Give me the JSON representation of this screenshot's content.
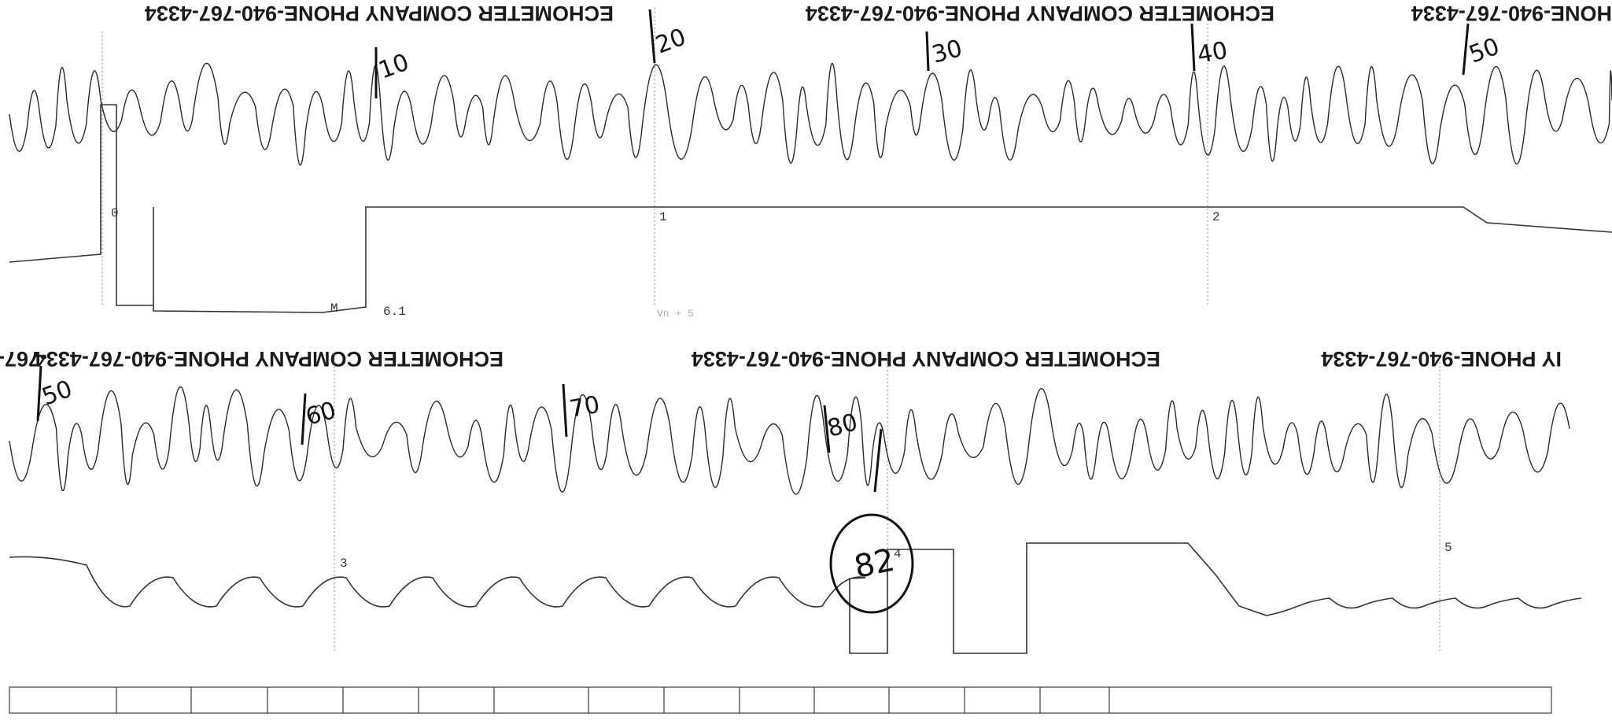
{
  "header_text": {
    "full": "ECHOMETER COMPANY  PHONE-940-767-4334",
    "partial_right": "HONE-940-767-4334",
    "partial_left": "-767-4",
    "partial_company": "IY  PHONE-940-767-4334"
  },
  "time_ticks": [
    "0",
    "1",
    "2",
    "3",
    "4",
    "5"
  ],
  "joint_marks": [
    "10",
    "20",
    "30",
    "40",
    "50",
    "50",
    "60",
    "70",
    "80"
  ],
  "circled_value": "82",
  "marker_text": {
    "m_label": "M",
    "m_value": "6.1",
    "faint_text": "Vn + 5"
  }
}
